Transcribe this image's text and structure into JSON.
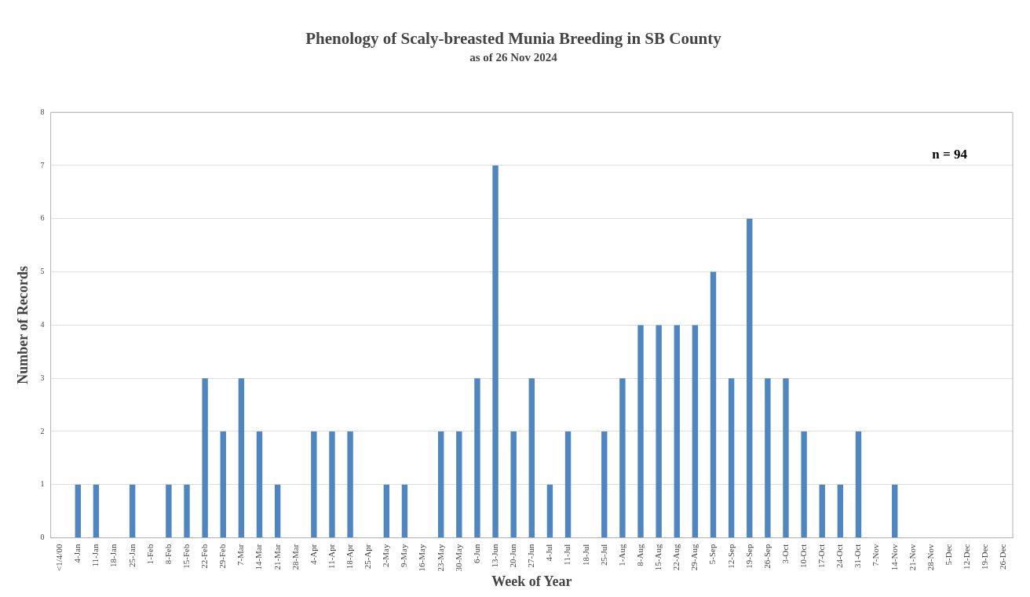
{
  "chart_data": {
    "type": "bar",
    "title": "Phenology of Scaly-breasted Munia Breeding in SB County",
    "subtitle": "as of 26 Nov 2024",
    "xlabel": "Week of Year",
    "ylabel": "Number of Records",
    "categories": [
      "<1/4/00",
      "4-Jan",
      "11-Jan",
      "18-Jan",
      "25-Jan",
      "1-Feb",
      "8-Feb",
      "15-Feb",
      "22-Feb",
      "29-Feb",
      "7-Mar",
      "14-Mar",
      "21-Mar",
      "28-Mar",
      "4-Apr",
      "11-Apr",
      "18-Apr",
      "25-Apr",
      "2-May",
      "9-May",
      "16-May",
      "23-May",
      "30-May",
      "6-Jun",
      "13-Jun",
      "20-Jun",
      "27-Jun",
      "4-Jul",
      "11-Jul",
      "18-Jul",
      "25-Jul",
      "1-Aug",
      "8-Aug",
      "15-Aug",
      "22-Aug",
      "29-Aug",
      "5-Sep",
      "12-Sep",
      "19-Sep",
      "26-Sep",
      "3-Oct",
      "10-Oct",
      "17-Oct",
      "24-Oct",
      "31-Oct",
      "7-Nov",
      "14-Nov",
      "21-Nov",
      "28-Nov",
      "5-Dec",
      "12-Dec",
      "19-Dec",
      "26-Dec"
    ],
    "values": [
      0,
      1,
      1,
      0,
      1,
      0,
      1,
      1,
      3,
      2,
      3,
      2,
      1,
      0,
      2,
      2,
      2,
      0,
      1,
      1,
      0,
      2,
      2,
      3,
      7,
      2,
      3,
      1,
      2,
      0,
      2,
      3,
      4,
      4,
      4,
      4,
      5,
      3,
      6,
      3,
      3,
      2,
      1,
      1,
      2,
      0,
      1,
      0,
      0,
      0,
      0,
      0,
      0
    ],
    "color": "#4f86c0",
    "ylim": [
      0,
      8
    ],
    "yticks": [
      0,
      1,
      2,
      3,
      4,
      5,
      6,
      7,
      8
    ],
    "grid": "y",
    "legend": false,
    "annotations": [
      "n = 94"
    ]
  }
}
